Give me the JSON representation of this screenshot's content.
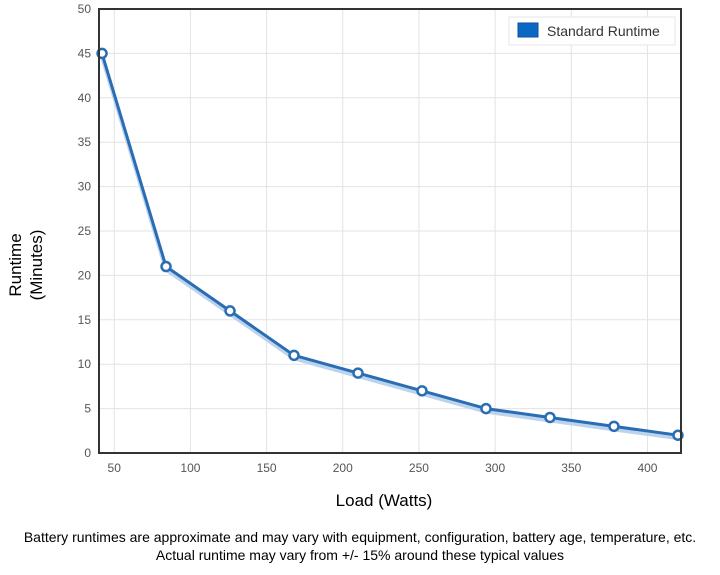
{
  "chart_data": {
    "type": "line",
    "xlabel": "Load (Watts)",
    "ylabel": [
      "Runtime",
      "(Minutes)"
    ],
    "xlim": [
      40,
      422
    ],
    "ylim": [
      0,
      50
    ],
    "x_ticks": [
      50,
      100,
      150,
      200,
      250,
      300,
      350,
      400
    ],
    "y_ticks": [
      0,
      5,
      10,
      15,
      20,
      25,
      30,
      35,
      40,
      45,
      50
    ],
    "grid": true,
    "legend_position": "top-right",
    "series": [
      {
        "name": "Standard Runtime",
        "color": "#2a6db3",
        "x": [
          42,
          84,
          126,
          168,
          210,
          252,
          294,
          336,
          378,
          420
        ],
        "y": [
          45,
          21,
          16,
          11,
          9,
          7,
          5,
          4,
          3,
          2
        ]
      }
    ]
  },
  "footnote": {
    "line1": "Battery runtimes are approximate and may vary with equipment, configuration, battery age, temperature, etc.",
    "line2": "Actual runtime may vary from +/- 15% around these typical values"
  }
}
